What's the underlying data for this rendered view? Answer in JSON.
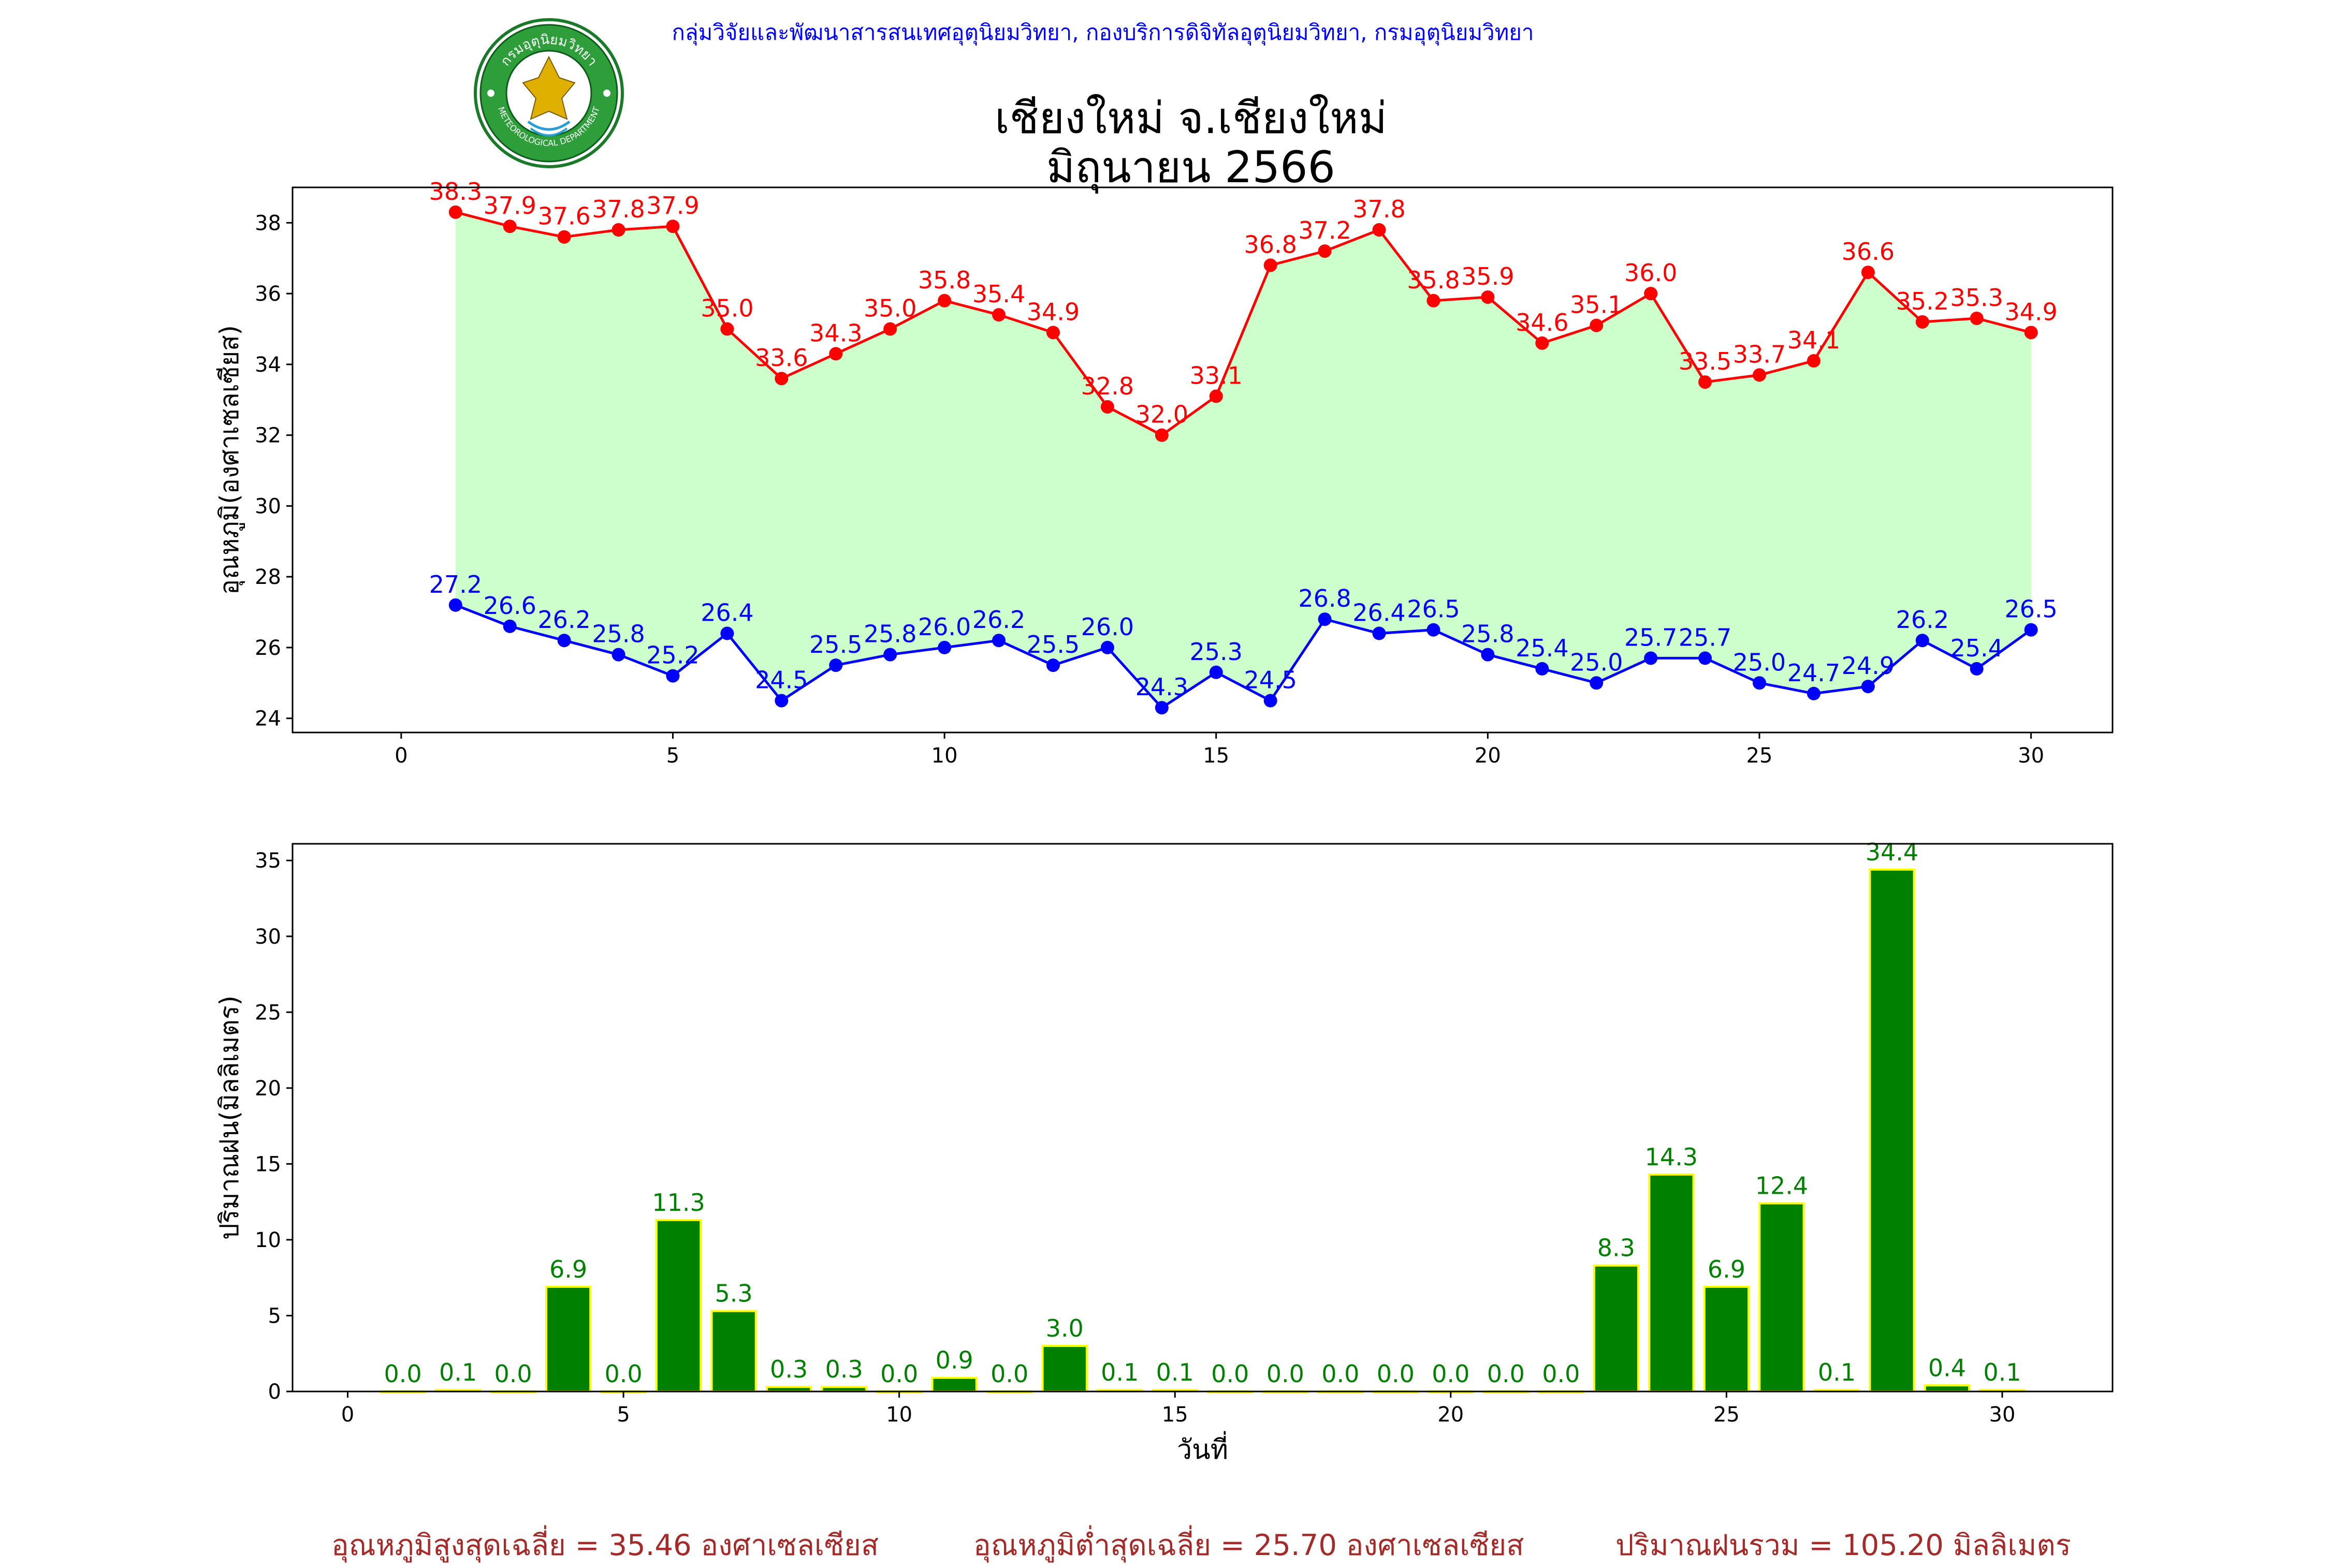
{
  "header": {
    "org_line": "กลุ่มวิจัยและพัฒนาสารสนเทศอุตุนิยมวิทยา, กองบริการดิจิทัลอุตุนิยมวิทยา, กรมอุตุนิยมวิทยา",
    "title_line1": "เชียงใหม่ จ.เชียงใหม่",
    "title_line2": "มิถุนายน 2566",
    "logo_icon": "meteorological-department-seal",
    "logo_text_top": "กรมอุตุนิยมวิทยา",
    "logo_text_bottom": "METEOROLOGICAL DEPARTMENT"
  },
  "chart_data": [
    {
      "type": "line",
      "ylabel": "อุณหภูมิ(องศาเซลเซียส)",
      "xlim": [
        -2,
        31.5
      ],
      "ylim": [
        23.6,
        39.0
      ],
      "xticks": [
        0,
        5,
        10,
        15,
        20,
        25,
        30
      ],
      "yticks": [
        24,
        26,
        28,
        30,
        32,
        34,
        36,
        38
      ],
      "fill_color": "#ccffcc",
      "x": [
        1,
        2,
        3,
        4,
        5,
        6,
        7,
        8,
        9,
        10,
        11,
        12,
        13,
        14,
        15,
        16,
        17,
        18,
        19,
        20,
        21,
        22,
        23,
        24,
        25,
        26,
        27,
        28,
        29,
        30
      ],
      "series": [
        {
          "color": "#ff0000",
          "values": [
            38.3,
            37.9,
            37.6,
            37.8,
            37.9,
            35.0,
            33.6,
            34.3,
            35.0,
            35.8,
            35.4,
            34.9,
            32.8,
            32.0,
            33.1,
            36.8,
            37.2,
            37.8,
            35.8,
            35.9,
            34.6,
            35.1,
            36.0,
            33.5,
            33.7,
            34.1,
            36.6,
            35.2,
            35.3,
            34.9
          ]
        },
        {
          "color": "#0000ff",
          "values": [
            27.2,
            26.6,
            26.2,
            25.8,
            25.2,
            26.4,
            24.5,
            25.5,
            25.8,
            26.0,
            26.2,
            25.5,
            26.0,
            24.3,
            25.3,
            24.5,
            26.8,
            26.4,
            26.5,
            25.8,
            25.4,
            25.0,
            25.7,
            25.7,
            25.0,
            24.7,
            24.9,
            26.2,
            25.4,
            26.5
          ]
        }
      ]
    },
    {
      "type": "bar",
      "xlabel": "วันที่",
      "ylabel": "ปริมาณฝน(มิลลิเมตร)",
      "xlim": [
        -1,
        32
      ],
      "ylim": [
        0,
        36.1
      ],
      "xticks": [
        0,
        5,
        10,
        15,
        20,
        25,
        30
      ],
      "yticks": [
        0,
        5,
        10,
        15,
        20,
        25,
        30,
        35
      ],
      "bar_color": "#008000",
      "edge_color": "#ffff00",
      "label_color": "#008000",
      "x": [
        1,
        2,
        3,
        4,
        5,
        6,
        7,
        8,
        9,
        10,
        11,
        12,
        13,
        14,
        15,
        16,
        17,
        18,
        19,
        20,
        21,
        22,
        23,
        24,
        25,
        26,
        27,
        28,
        29,
        30
      ],
      "values": [
        0.0,
        0.1,
        0.0,
        6.9,
        0.0,
        11.3,
        5.3,
        0.3,
        0.3,
        0.0,
        0.9,
        0.0,
        3.0,
        0.1,
        0.1,
        0.0,
        0.0,
        0.0,
        0.0,
        0.0,
        0.0,
        0.0,
        8.3,
        14.3,
        6.9,
        12.4,
        0.1,
        34.4,
        0.4,
        0.1
      ]
    }
  ],
  "footer": {
    "avg_max": "อุณหภูมิสูงสุดเฉลี่ย = 35.46 องศาเซลเซียส",
    "avg_min": "อุณหภูมิต่ำสุดเฉลี่ย = 25.70 องศาเซลเซียส",
    "total_rain": "ปริมาณฝนรวม = 105.20 มิลลิเมตร"
  }
}
